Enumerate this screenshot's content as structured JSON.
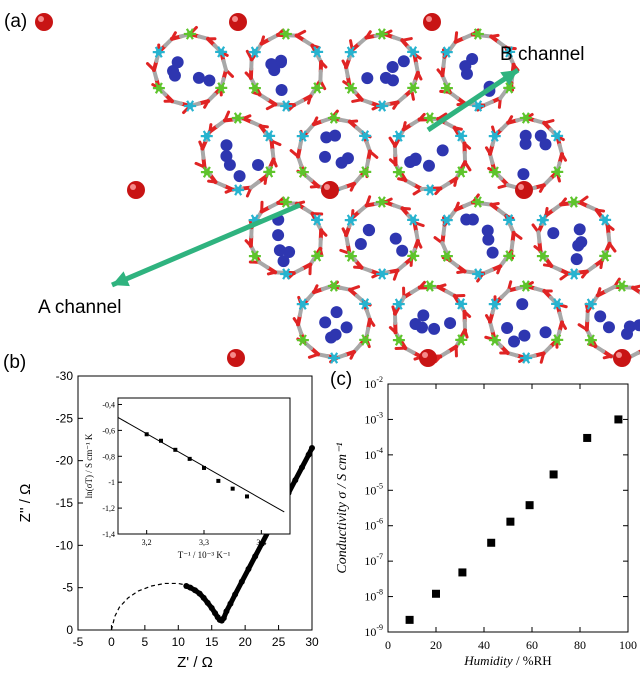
{
  "panel_labels": {
    "a": "(a)",
    "b": "(b)",
    "c": "(c)"
  },
  "structure": {
    "label_a": "A channel",
    "label_b": "B channel",
    "colors": {
      "oxygen": "#e02424",
      "carbon": "#a8a8a8",
      "metal_green": "#5ec42c",
      "metal_cyan": "#27b3cf",
      "water": "#2e36b0",
      "cation": "#c81414",
      "arrow": "#2fb37f"
    }
  },
  "chart_data": [
    {
      "type": "scatter",
      "id": "nyquist",
      "xlabel": "Z' / Ω",
      "ylabel": "Z'' / Ω",
      "xlim": [
        -5,
        30
      ],
      "ylim": [
        0,
        -30
      ],
      "xticks": [
        -5,
        0,
        5,
        10,
        15,
        20,
        25,
        30
      ],
      "yticks": [
        0,
        -5,
        -10,
        -15,
        -20,
        -25,
        -30
      ],
      "fit_arc": {
        "style": "dashed",
        "x": [
          0,
          0.5,
          1.2,
          2.5,
          4,
          6,
          8,
          10,
          11.2
        ],
        "y": [
          0,
          -1.6,
          -2.7,
          -3.8,
          -4.6,
          -5.2,
          -5.5,
          -5.5,
          -5.3
        ]
      },
      "series": [
        {
          "style": "markers",
          "x": [
            11.2,
            11.8,
            12.5,
            13.2,
            13.8,
            14.4,
            15.0,
            15.5,
            15.9,
            16.2,
            16.5,
            16.8,
            17.2,
            17.8,
            18.5,
            19.5,
            20.5,
            21.5,
            22.5,
            23.5,
            24.5,
            25.5,
            26.5,
            27.5,
            28.5,
            29.5,
            30.0
          ],
          "y": [
            -5.2,
            -5.0,
            -4.7,
            -4.3,
            -3.8,
            -3.2,
            -2.6,
            -2.0,
            -1.5,
            -1.2,
            -1.1,
            -1.4,
            -2.2,
            -3.1,
            -4.2,
            -5.7,
            -7.2,
            -8.7,
            -10.2,
            -11.7,
            -13.2,
            -14.7,
            -16.2,
            -17.7,
            -19.2,
            -20.7,
            -21.5
          ]
        }
      ]
    },
    {
      "type": "scatter",
      "id": "arrhenius_inset",
      "xlabel": "T⁻¹ / 10⁻³ K⁻¹",
      "ylabel": "ln(σT) / S cm⁻¹ K",
      "xlim": [
        3.15,
        3.45
      ],
      "ylim": [
        -1.4,
        -0.35
      ],
      "xticks": [
        3.2,
        3.3,
        3.4
      ],
      "xtick_labels": [
        "3,2",
        "3,3",
        "3,4"
      ],
      "yticks": [
        -0.4,
        -0.6,
        -0.8,
        -1.0,
        -1.2,
        -1.4
      ],
      "ytick_labels": [
        "-0,4",
        "-0,6",
        "-0,8",
        "-1",
        "-1,2",
        "-1,4"
      ],
      "fit_line": {
        "x": [
          3.15,
          3.44
        ],
        "y": [
          -0.5,
          -1.23
        ]
      },
      "series": [
        {
          "style": "markers",
          "x": [
            3.2,
            3.225,
            3.25,
            3.275,
            3.3,
            3.325,
            3.35,
            3.375
          ],
          "y": [
            -0.63,
            -0.68,
            -0.75,
            -0.82,
            -0.89,
            -0.99,
            -1.05,
            -1.11
          ]
        }
      ]
    },
    {
      "type": "scatter",
      "id": "conductivity",
      "xlabel": "Humidity",
      "xlabel_unit": " / %RH",
      "ylabel": "Conductivity σ / S cm⁻¹",
      "xlim": [
        0,
        100
      ],
      "ylim": [
        1e-09,
        0.01
      ],
      "yscale": "log",
      "xticks": [
        0,
        20,
        40,
        60,
        80,
        100
      ],
      "ytick_labels": [
        {
          "base": "10",
          "exp": "-9"
        },
        {
          "base": "10",
          "exp": "-8"
        },
        {
          "base": "10",
          "exp": "-7"
        },
        {
          "base": "10",
          "exp": "-6"
        },
        {
          "base": "10",
          "exp": "-5"
        },
        {
          "base": "10",
          "exp": "-4"
        },
        {
          "base": "10",
          "exp": "-3"
        },
        {
          "base": "10",
          "exp": "-2"
        }
      ],
      "series": [
        {
          "style": "square-markers",
          "x": [
            9,
            20,
            31,
            43,
            51,
            59,
            69,
            83,
            96
          ],
          "y": [
            2.2e-09,
            1.2e-08,
            4.8e-08,
            3.3e-07,
            1.3e-06,
            3.8e-06,
            2.8e-05,
            0.0003,
            0.001
          ]
        }
      ]
    }
  ]
}
